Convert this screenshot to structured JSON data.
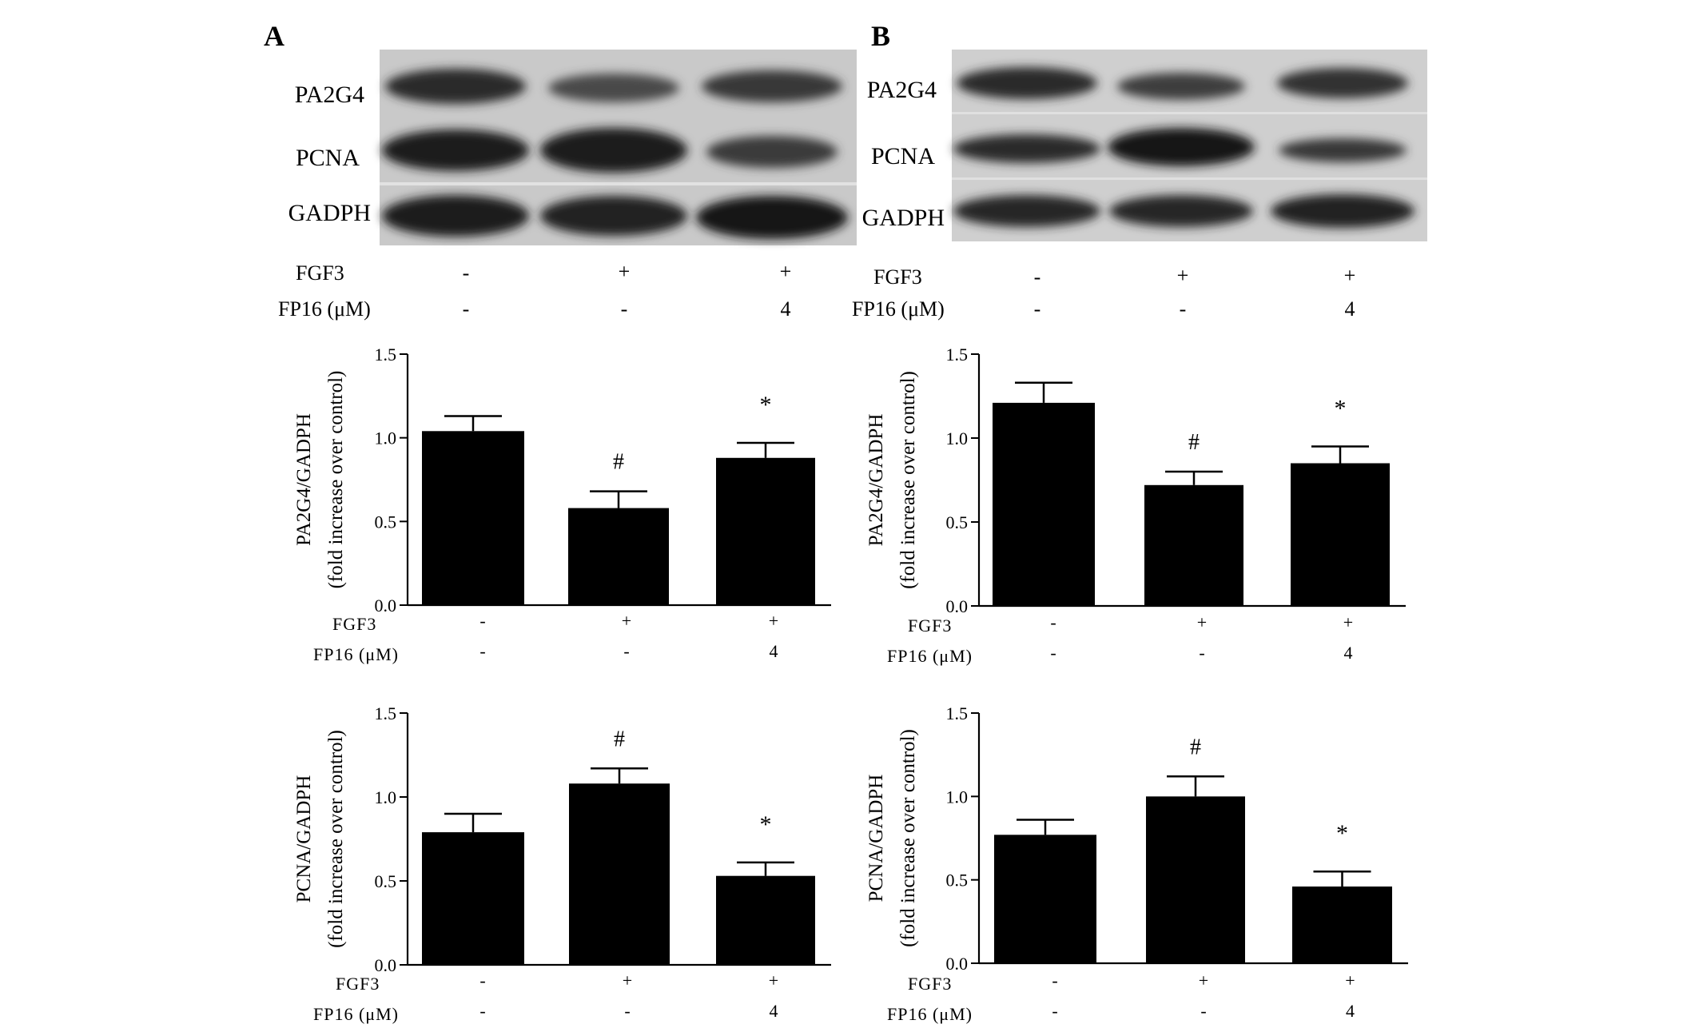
{
  "panels": [
    {
      "label": "A",
      "blot": {
        "rows": [
          "PA2G4",
          "PCNA",
          "GADPH"
        ],
        "treatments": [
          {
            "name": "FGF3",
            "values": [
              "-",
              "+",
              "+"
            ]
          },
          {
            "name": "FP16 (μM)",
            "values": [
              "-",
              "-",
              "4"
            ]
          }
        ]
      }
    },
    {
      "label": "B",
      "blot": {
        "rows": [
          "PA2G4",
          "PCNA",
          "GADPH"
        ],
        "treatments": [
          {
            "name": "FGF3",
            "values": [
              "-",
              "+",
              "+"
            ]
          },
          {
            "name": "FP16 (μM)",
            "values": [
              "-",
              "-",
              "4"
            ]
          }
        ]
      }
    }
  ],
  "chart_data": [
    {
      "panel": "A",
      "type": "bar",
      "ylabel": [
        "PA2G4/GADPH",
        "(fold increase over control)"
      ],
      "ylim": [
        0,
        1.5
      ],
      "yticks": [
        "0.0",
        "0.5",
        "1.0",
        "1.5"
      ],
      "values": [
        1.04,
        0.58,
        0.88
      ],
      "errors": [
        0.09,
        0.1,
        0.09
      ],
      "annotations": [
        "",
        "#",
        "*"
      ],
      "treatments": [
        {
          "name": "FGF3",
          "values": [
            "-",
            "+",
            "+"
          ]
        },
        {
          "name": "FP16 (μM)",
          "values": [
            "-",
            "-",
            "4"
          ]
        }
      ]
    },
    {
      "panel": "A",
      "type": "bar",
      "ylabel": [
        "PCNA/GADPH",
        "(fold increase over control)"
      ],
      "ylim": [
        0,
        1.5
      ],
      "yticks": [
        "0.0",
        "0.5",
        "1.0",
        "1.5"
      ],
      "values": [
        0.79,
        1.08,
        0.53
      ],
      "errors": [
        0.11,
        0.09,
        0.08
      ],
      "annotations": [
        "",
        "#",
        "*"
      ],
      "treatments": [
        {
          "name": "FGF3",
          "values": [
            "-",
            "+",
            "+"
          ]
        },
        {
          "name": "FP16 (μM)",
          "values": [
            "-",
            "-",
            "4"
          ]
        }
      ]
    },
    {
      "panel": "B",
      "type": "bar",
      "ylabel": [
        "PA2G4/GADPH",
        "(fold increase over control)"
      ],
      "ylim": [
        0,
        1.5
      ],
      "yticks": [
        "0.0",
        "0.5",
        "1.0",
        "1.5"
      ],
      "values": [
        1.21,
        0.72,
        0.85
      ],
      "errors": [
        0.12,
        0.08,
        0.1
      ],
      "annotations": [
        "",
        "#",
        "*"
      ],
      "treatments": [
        {
          "name": "FGF3",
          "values": [
            "-",
            "+",
            "+"
          ]
        },
        {
          "name": "FP16 (μM)",
          "values": [
            "-",
            "-",
            "4"
          ]
        }
      ]
    },
    {
      "panel": "B",
      "type": "bar",
      "ylabel": [
        "PCNA/GADPH",
        "(fold increase over control)"
      ],
      "ylim": [
        0,
        1.5
      ],
      "yticks": [
        "0.0",
        "0.5",
        "1.0",
        "1.5"
      ],
      "values": [
        0.77,
        1.0,
        0.46
      ],
      "errors": [
        0.09,
        0.12,
        0.09
      ],
      "annotations": [
        "",
        "#",
        "*"
      ],
      "treatments": [
        {
          "name": "FGF3",
          "values": [
            "-",
            "+",
            "+"
          ]
        },
        {
          "name": "FP16 (μM)",
          "values": [
            "-",
            "-",
            "4"
          ]
        }
      ]
    }
  ]
}
